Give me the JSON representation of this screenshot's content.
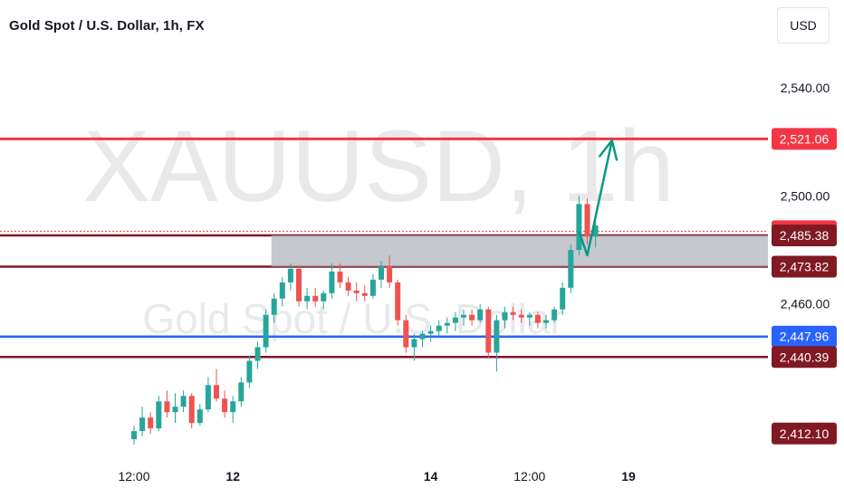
{
  "header": {
    "title": "Gold Spot / U.S. Dollar, 1h, FX",
    "currency": "USD"
  },
  "watermark": {
    "symbol": "XAUUSD, 1h",
    "description": "Gold Spot / U.S. Dollar"
  },
  "colors": {
    "up": "#26a69a",
    "down": "#ef5350",
    "resistance": "#f23645",
    "dark_level": "#801922",
    "support_blue": "#2962ff",
    "zone": "#b2b5be",
    "arrow": "#089981"
  },
  "chart_data": {
    "type": "candlestick",
    "y_axis": {
      "min": 2405,
      "max": 2553,
      "ticks": [
        "2,460.00",
        "2,500.00",
        "2,540.00"
      ],
      "tick_values": [
        2460,
        2500,
        2540
      ]
    },
    "x_axis": {
      "ticks": [
        {
          "label": "12:00",
          "bold": false,
          "bar": 0
        },
        {
          "label": "12",
          "bold": true,
          "bar": 12
        },
        {
          "label": "14",
          "bold": true,
          "bar": 36
        },
        {
          "label": "12:00",
          "bold": false,
          "bar": 48
        },
        {
          "label": "19",
          "bold": true,
          "bar": 60
        }
      ]
    },
    "price_labels": [
      {
        "text": "2,521.06",
        "value": 2521.06,
        "style": "resistance"
      },
      {
        "text": "2,486.93",
        "value": 2486.93,
        "style": "resistance"
      },
      {
        "text": "2,485.38",
        "value": 2485.38,
        "style": "dark"
      },
      {
        "text": "2,473.82",
        "value": 2473.82,
        "style": "dark"
      },
      {
        "text": "2,447.96",
        "value": 2447.96,
        "style": "blue"
      },
      {
        "text": "2,440.39",
        "value": 2440.39,
        "style": "dark"
      },
      {
        "text": "2,412.10",
        "value": 2412.1,
        "style": "dark"
      }
    ],
    "levels": [
      {
        "value": 2521.06,
        "style": "resistance",
        "from_bar": -20
      },
      {
        "value": 2486.93,
        "style": "dotted",
        "from_bar": -20
      },
      {
        "value": 2485.38,
        "style": "dark",
        "from_bar": -20
      },
      {
        "value": 2473.82,
        "style": "dark",
        "from_bar": -20
      },
      {
        "value": 2447.96,
        "style": "blue",
        "from_bar": -20
      },
      {
        "value": 2440.39,
        "style": "dark",
        "from_bar": -20
      }
    ],
    "zone": {
      "from_bar": 17,
      "y_low": 2473.82,
      "y_high": 2485.38
    },
    "arrow": {
      "points": [
        [
          54.0,
          2486.8
        ],
        [
          55.0,
          2478.0
        ],
        [
          58.0,
          2520.5
        ]
      ]
    },
    "candles_note": "open, high, low, close",
    "candles": [
      [
        2410,
        2415,
        2408,
        2413
      ],
      [
        2413,
        2422,
        2411,
        2418
      ],
      [
        2418,
        2420,
        2412,
        2414
      ],
      [
        2414,
        2426,
        2413,
        2424
      ],
      [
        2424,
        2428,
        2418,
        2420
      ],
      [
        2420,
        2427,
        2416,
        2422
      ],
      [
        2422,
        2428,
        2420,
        2426
      ],
      [
        2426,
        2427,
        2414,
        2416
      ],
      [
        2416,
        2423,
        2415,
        2421
      ],
      [
        2421,
        2433,
        2420,
        2430
      ],
      [
        2430,
        2436,
        2424,
        2425
      ],
      [
        2425,
        2428,
        2418,
        2420
      ],
      [
        2420,
        2426,
        2416,
        2424
      ],
      [
        2424,
        2433,
        2422,
        2431
      ],
      [
        2431,
        2441,
        2429,
        2439
      ],
      [
        2439,
        2446,
        2436,
        2444
      ],
      [
        2444,
        2458,
        2442,
        2456
      ],
      [
        2456,
        2464,
        2453,
        2462
      ],
      [
        2462,
        2470,
        2459,
        2468
      ],
      [
        2468,
        2475,
        2465,
        2473
      ],
      [
        2473,
        2474,
        2459,
        2461
      ],
      [
        2461,
        2466,
        2458,
        2463
      ],
      [
        2463,
        2466,
        2459,
        2461
      ],
      [
        2461,
        2465,
        2458,
        2464
      ],
      [
        2464,
        2475,
        2462,
        2472
      ],
      [
        2472,
        2475,
        2466,
        2468
      ],
      [
        2468,
        2470,
        2463,
        2465
      ],
      [
        2465,
        2468,
        2461,
        2464
      ],
      [
        2464,
        2467,
        2461,
        2463
      ],
      [
        2463,
        2471,
        2462,
        2469
      ],
      [
        2469,
        2476,
        2466,
        2474
      ],
      [
        2474,
        2478,
        2466,
        2468
      ],
      [
        2468,
        2469,
        2452,
        2454
      ],
      [
        2454,
        2456,
        2442,
        2444
      ],
      [
        2444,
        2449,
        2439,
        2447
      ],
      [
        2447,
        2450,
        2444,
        2449
      ],
      [
        2449,
        2452,
        2446,
        2450
      ],
      [
        2450,
        2454,
        2448,
        2452
      ],
      [
        2452,
        2455,
        2449,
        2453
      ],
      [
        2453,
        2457,
        2450,
        2455
      ],
      [
        2455,
        2458,
        2452,
        2456
      ],
      [
        2456,
        2458,
        2452,
        2454
      ],
      [
        2454,
        2460,
        2453,
        2458
      ],
      [
        2458,
        2459,
        2440,
        2442
      ],
      [
        2442,
        2456,
        2435,
        2454
      ],
      [
        2454,
        2459,
        2451,
        2457
      ],
      [
        2457,
        2459,
        2454,
        2456
      ],
      [
        2456,
        2458,
        2453,
        2455
      ],
      [
        2455,
        2457,
        2452,
        2456
      ],
      [
        2456,
        2457,
        2451,
        2453
      ],
      [
        2453,
        2456,
        2451,
        2454
      ],
      [
        2454,
        2459,
        2453,
        2458
      ],
      [
        2458,
        2468,
        2456,
        2466
      ],
      [
        2466,
        2482,
        2464,
        2480
      ],
      [
        2480,
        2500,
        2478,
        2497
      ],
      [
        2497,
        2499,
        2482,
        2485
      ],
      [
        2485,
        2491,
        2481,
        2489
      ]
    ]
  }
}
